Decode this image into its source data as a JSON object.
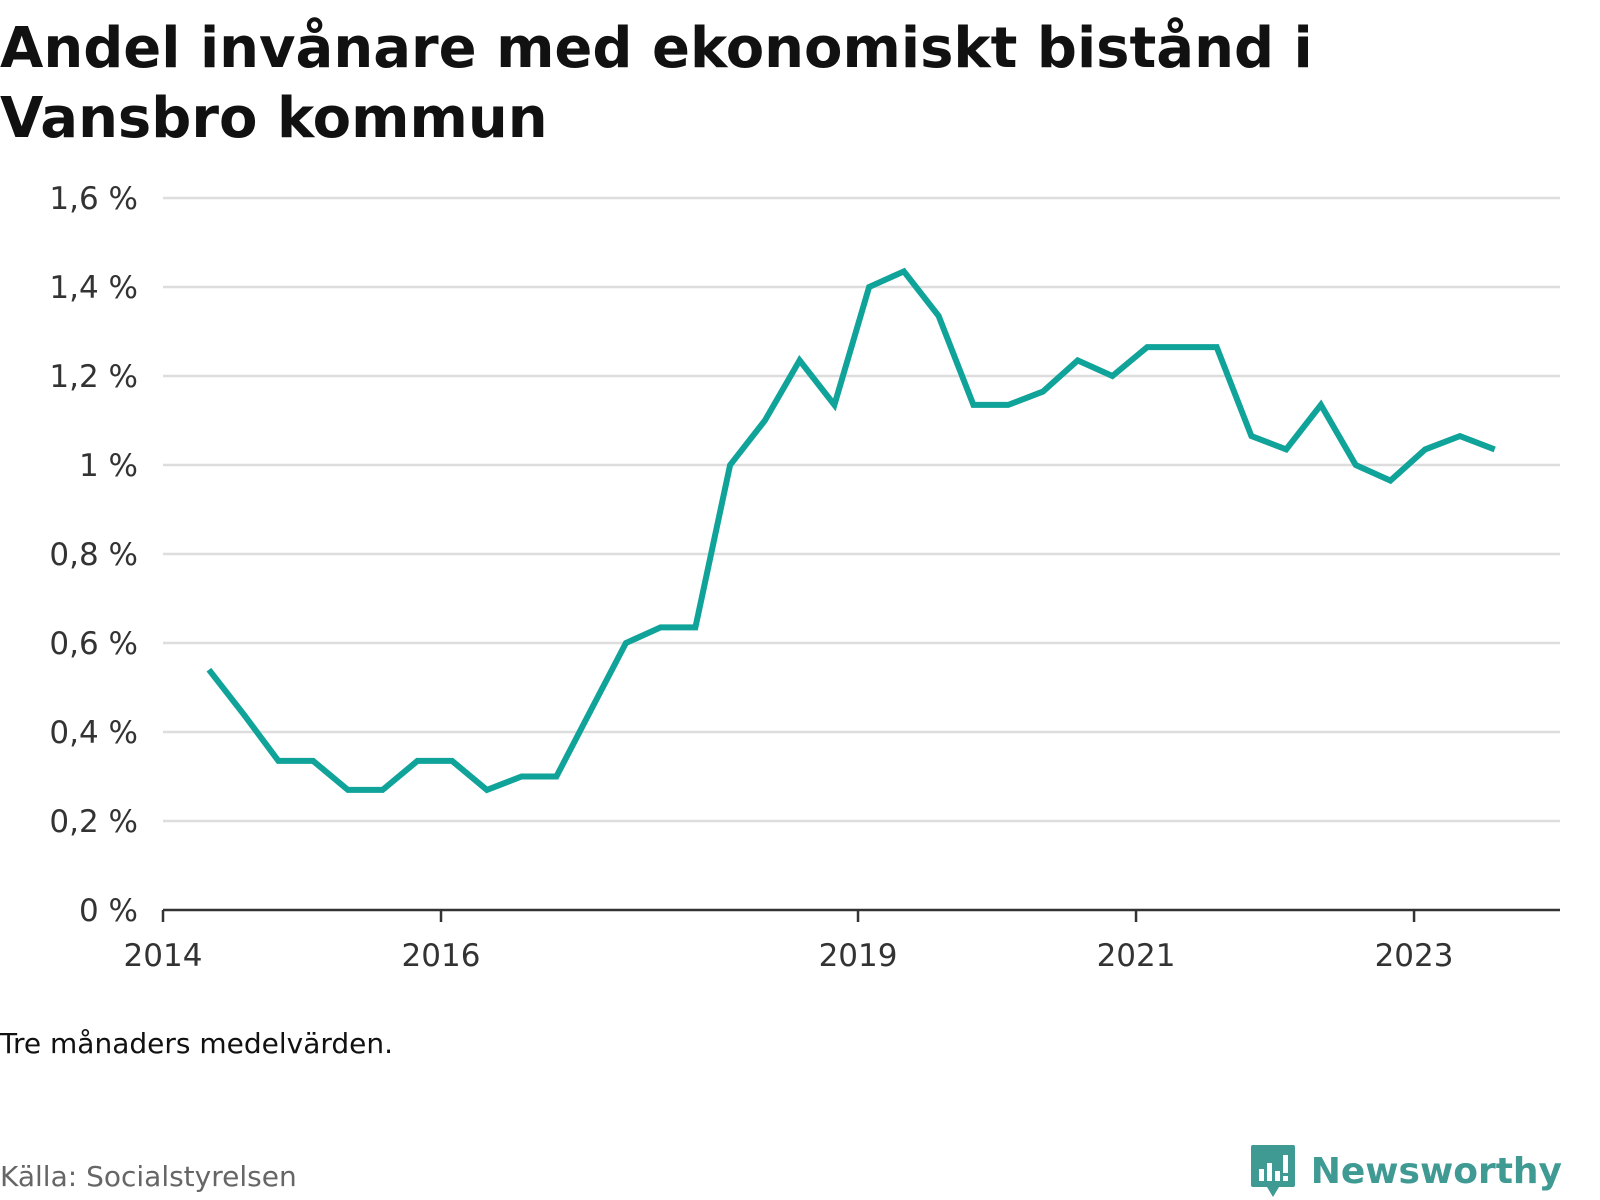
{
  "chart_data": {
    "type": "line",
    "title": "Andel invånare med ekonomiskt bistånd i Vansbro kommun",
    "note": "Tre månaders medelvärden.",
    "source": "Källa: Socialstyrelsen",
    "ylim": [
      0,
      1.6
    ],
    "yticks": [
      0,
      0.2,
      0.4,
      0.6,
      0.8,
      1.0,
      1.2,
      1.4,
      1.6
    ],
    "ytick_labels": [
      "0 %",
      "0,2 %",
      "0,4 %",
      "0,6 %",
      "0,8 %",
      "1 %",
      "1,2 %",
      "1,4 %",
      "1,6 %"
    ],
    "xlim": [
      2014.0,
      2024.05
    ],
    "xticks": [
      2014,
      2016,
      2019,
      2021,
      2023
    ],
    "xtick_labels": [
      "2014",
      "2016",
      "2019",
      "2021",
      "2023"
    ],
    "grid": true,
    "line_color": "#0fa39a",
    "series": [
      {
        "x": [
          2014.33,
          2014.58,
          2014.83,
          2015.08,
          2015.33,
          2015.58,
          2015.83,
          2016.08,
          2016.33,
          2016.58,
          2016.83,
          2017.08,
          2017.33,
          2017.58,
          2017.83,
          2018.08,
          2018.33,
          2018.58,
          2018.83,
          2019.08,
          2019.33,
          2019.58,
          2019.83,
          2020.08,
          2020.33,
          2020.58,
          2020.83,
          2021.08,
          2021.33,
          2021.58,
          2021.83,
          2022.08,
          2022.33,
          2022.58,
          2022.83,
          2023.08,
          2023.33,
          2023.58
        ],
        "values": [
          0.54,
          0.44,
          0.335,
          0.335,
          0.27,
          0.27,
          0.335,
          0.335,
          0.27,
          0.3,
          0.3,
          0.45,
          0.6,
          0.635,
          0.635,
          1.0,
          1.1,
          1.235,
          1.135,
          1.4,
          1.435,
          1.335,
          1.135,
          1.135,
          1.165,
          1.235,
          1.2,
          1.265,
          1.265,
          1.265,
          1.065,
          1.035,
          1.135,
          1.0,
          0.965,
          1.035,
          1.065,
          1.035
        ]
      }
    ]
  },
  "brand": {
    "name": "Newsworthy",
    "icon": "newsworthy-logo-icon",
    "color": "#3e9a92"
  }
}
